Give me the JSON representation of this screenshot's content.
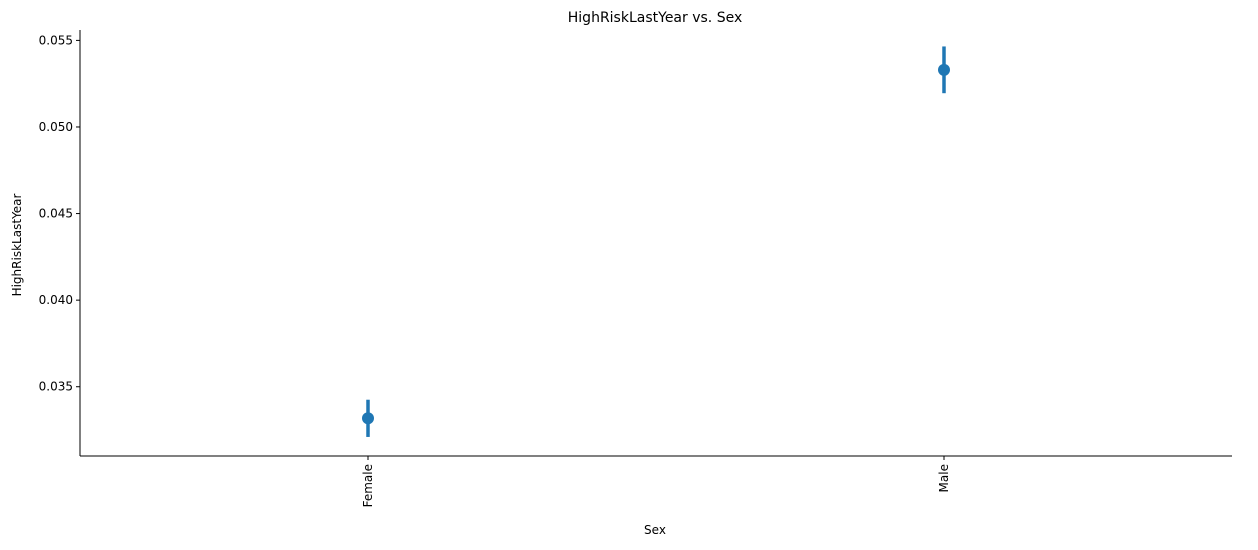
{
  "chart_data": {
    "type": "scatter",
    "style": "pointplot-with-error-bars",
    "title": "HighRiskLastYear vs. Sex",
    "xlabel": "Sex",
    "ylabel": "HighRiskLastYear",
    "categories": [
      "Female",
      "Male"
    ],
    "x_tick_rotation": "vertical",
    "values": [
      0.03318,
      0.0533
    ],
    "ci_low": [
      0.0321,
      0.05195
    ],
    "ci_high": [
      0.03425,
      0.05465
    ],
    "ylim": [
      0.031,
      0.0556
    ],
    "yticks": [
      0.035,
      0.04,
      0.045,
      0.05,
      0.055
    ],
    "ytick_labels": [
      "0.035",
      "0.040",
      "0.045",
      "0.050",
      "0.055"
    ],
    "grid": false,
    "legend": "none",
    "color": "#1f77b4"
  }
}
